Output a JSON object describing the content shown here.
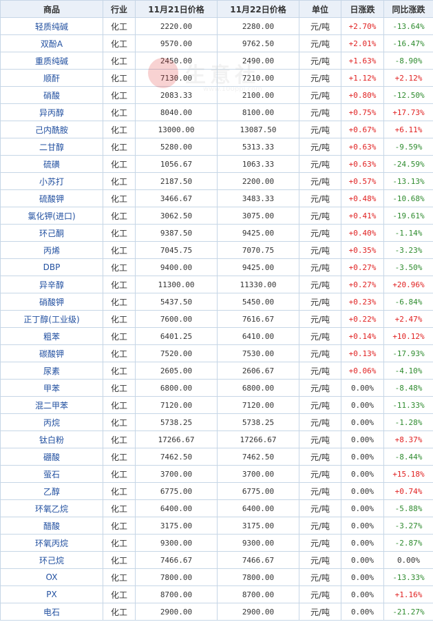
{
  "table": {
    "headers": [
      "商品",
      "行业",
      "11月21日价格",
      "11月22日价格",
      "单位",
      "日涨跌",
      "同比涨跌"
    ],
    "rows": [
      {
        "name": "轻质纯碱",
        "industry": "化工",
        "p1": "2220.00",
        "p2": "2280.00",
        "unit": "元/吨",
        "day": "+2.70%",
        "yoy": "-13.64%"
      },
      {
        "name": "双酚A",
        "industry": "化工",
        "p1": "9570.00",
        "p2": "9762.50",
        "unit": "元/吨",
        "day": "+2.01%",
        "yoy": "-16.47%"
      },
      {
        "name": "重质纯碱",
        "industry": "化工",
        "p1": "2450.00",
        "p2": "2490.00",
        "unit": "元/吨",
        "day": "+1.63%",
        "yoy": "-8.90%"
      },
      {
        "name": "顺酐",
        "industry": "化工",
        "p1": "7130.00",
        "p2": "7210.00",
        "unit": "元/吨",
        "day": "+1.12%",
        "yoy": "+2.12%"
      },
      {
        "name": "硝酸",
        "industry": "化工",
        "p1": "2083.33",
        "p2": "2100.00",
        "unit": "元/吨",
        "day": "+0.80%",
        "yoy": "-12.50%"
      },
      {
        "name": "异丙醇",
        "industry": "化工",
        "p1": "8040.00",
        "p2": "8100.00",
        "unit": "元/吨",
        "day": "+0.75%",
        "yoy": "+17.73%"
      },
      {
        "name": "己内酰胺",
        "industry": "化工",
        "p1": "13000.00",
        "p2": "13087.50",
        "unit": "元/吨",
        "day": "+0.67%",
        "yoy": "+6.11%"
      },
      {
        "name": "二甘醇",
        "industry": "化工",
        "p1": "5280.00",
        "p2": "5313.33",
        "unit": "元/吨",
        "day": "+0.63%",
        "yoy": "-9.59%"
      },
      {
        "name": "硫磺",
        "industry": "化工",
        "p1": "1056.67",
        "p2": "1063.33",
        "unit": "元/吨",
        "day": "+0.63%",
        "yoy": "-24.59%"
      },
      {
        "name": "小苏打",
        "industry": "化工",
        "p1": "2187.50",
        "p2": "2200.00",
        "unit": "元/吨",
        "day": "+0.57%",
        "yoy": "-13.13%"
      },
      {
        "name": "硫酸钾",
        "industry": "化工",
        "p1": "3466.67",
        "p2": "3483.33",
        "unit": "元/吨",
        "day": "+0.48%",
        "yoy": "-10.68%"
      },
      {
        "name": "氯化钾(进口)",
        "industry": "化工",
        "p1": "3062.50",
        "p2": "3075.00",
        "unit": "元/吨",
        "day": "+0.41%",
        "yoy": "-19.61%"
      },
      {
        "name": "环己酮",
        "industry": "化工",
        "p1": "9387.50",
        "p2": "9425.00",
        "unit": "元/吨",
        "day": "+0.40%",
        "yoy": "-1.14%"
      },
      {
        "name": "丙烯",
        "industry": "化工",
        "p1": "7045.75",
        "p2": "7070.75",
        "unit": "元/吨",
        "day": "+0.35%",
        "yoy": "-3.23%"
      },
      {
        "name": "DBP",
        "industry": "化工",
        "p1": "9400.00",
        "p2": "9425.00",
        "unit": "元/吨",
        "day": "+0.27%",
        "yoy": "-3.50%"
      },
      {
        "name": "异辛醇",
        "industry": "化工",
        "p1": "11300.00",
        "p2": "11330.00",
        "unit": "元/吨",
        "day": "+0.27%",
        "yoy": "+20.96%"
      },
      {
        "name": "硝酸钾",
        "industry": "化工",
        "p1": "5437.50",
        "p2": "5450.00",
        "unit": "元/吨",
        "day": "+0.23%",
        "yoy": "-6.84%"
      },
      {
        "name": "正丁醇(工业级)",
        "industry": "化工",
        "p1": "7600.00",
        "p2": "7616.67",
        "unit": "元/吨",
        "day": "+0.22%",
        "yoy": "+2.47%"
      },
      {
        "name": "粗苯",
        "industry": "化工",
        "p1": "6401.25",
        "p2": "6410.00",
        "unit": "元/吨",
        "day": "+0.14%",
        "yoy": "+10.12%"
      },
      {
        "name": "碳酸钾",
        "industry": "化工",
        "p1": "7520.00",
        "p2": "7530.00",
        "unit": "元/吨",
        "day": "+0.13%",
        "yoy": "-17.93%"
      },
      {
        "name": "尿素",
        "industry": "化工",
        "p1": "2605.00",
        "p2": "2606.67",
        "unit": "元/吨",
        "day": "+0.06%",
        "yoy": "-4.10%"
      },
      {
        "name": "甲苯",
        "industry": "化工",
        "p1": "6800.00",
        "p2": "6800.00",
        "unit": "元/吨",
        "day": "0.00%",
        "yoy": "-8.48%"
      },
      {
        "name": "混二甲苯",
        "industry": "化工",
        "p1": "7120.00",
        "p2": "7120.00",
        "unit": "元/吨",
        "day": "0.00%",
        "yoy": "-11.33%"
      },
      {
        "name": "丙烷",
        "industry": "化工",
        "p1": "5738.25",
        "p2": "5738.25",
        "unit": "元/吨",
        "day": "0.00%",
        "yoy": "-1.28%"
      },
      {
        "name": "钛白粉",
        "industry": "化工",
        "p1": "17266.67",
        "p2": "17266.67",
        "unit": "元/吨",
        "day": "0.00%",
        "yoy": "+8.37%"
      },
      {
        "name": "硼酸",
        "industry": "化工",
        "p1": "7462.50",
        "p2": "7462.50",
        "unit": "元/吨",
        "day": "0.00%",
        "yoy": "-8.44%"
      },
      {
        "name": "萤石",
        "industry": "化工",
        "p1": "3700.00",
        "p2": "3700.00",
        "unit": "元/吨",
        "day": "0.00%",
        "yoy": "+15.18%"
      },
      {
        "name": "乙醇",
        "industry": "化工",
        "p1": "6775.00",
        "p2": "6775.00",
        "unit": "元/吨",
        "day": "0.00%",
        "yoy": "+0.74%"
      },
      {
        "name": "环氧乙烷",
        "industry": "化工",
        "p1": "6400.00",
        "p2": "6400.00",
        "unit": "元/吨",
        "day": "0.00%",
        "yoy": "-5.88%"
      },
      {
        "name": "醋酸",
        "industry": "化工",
        "p1": "3175.00",
        "p2": "3175.00",
        "unit": "元/吨",
        "day": "0.00%",
        "yoy": "-3.27%"
      },
      {
        "name": "环氧丙烷",
        "industry": "化工",
        "p1": "9300.00",
        "p2": "9300.00",
        "unit": "元/吨",
        "day": "0.00%",
        "yoy": "-2.87%"
      },
      {
        "name": "环己烷",
        "industry": "化工",
        "p1": "7466.67",
        "p2": "7466.67",
        "unit": "元/吨",
        "day": "0.00%",
        "yoy": "0.00%"
      },
      {
        "name": "OX",
        "industry": "化工",
        "p1": "7800.00",
        "p2": "7800.00",
        "unit": "元/吨",
        "day": "0.00%",
        "yoy": "-13.33%"
      },
      {
        "name": "PX",
        "industry": "化工",
        "p1": "8700.00",
        "p2": "8700.00",
        "unit": "元/吨",
        "day": "0.00%",
        "yoy": "+1.16%"
      },
      {
        "name": "电石",
        "industry": "化工",
        "p1": "2900.00",
        "p2": "2900.00",
        "unit": "元/吨",
        "day": "0.00%",
        "yoy": "-21.27%"
      }
    ]
  },
  "watermark": {
    "text": "生意社",
    "url": "www.100ppi.com",
    "color": "#c9c9c9"
  },
  "colors": {
    "up": "#e02020",
    "down": "#2e8b2e",
    "link": "#2250a0",
    "header_bg": "#eaf0f8",
    "border": "#c6d6e6"
  }
}
